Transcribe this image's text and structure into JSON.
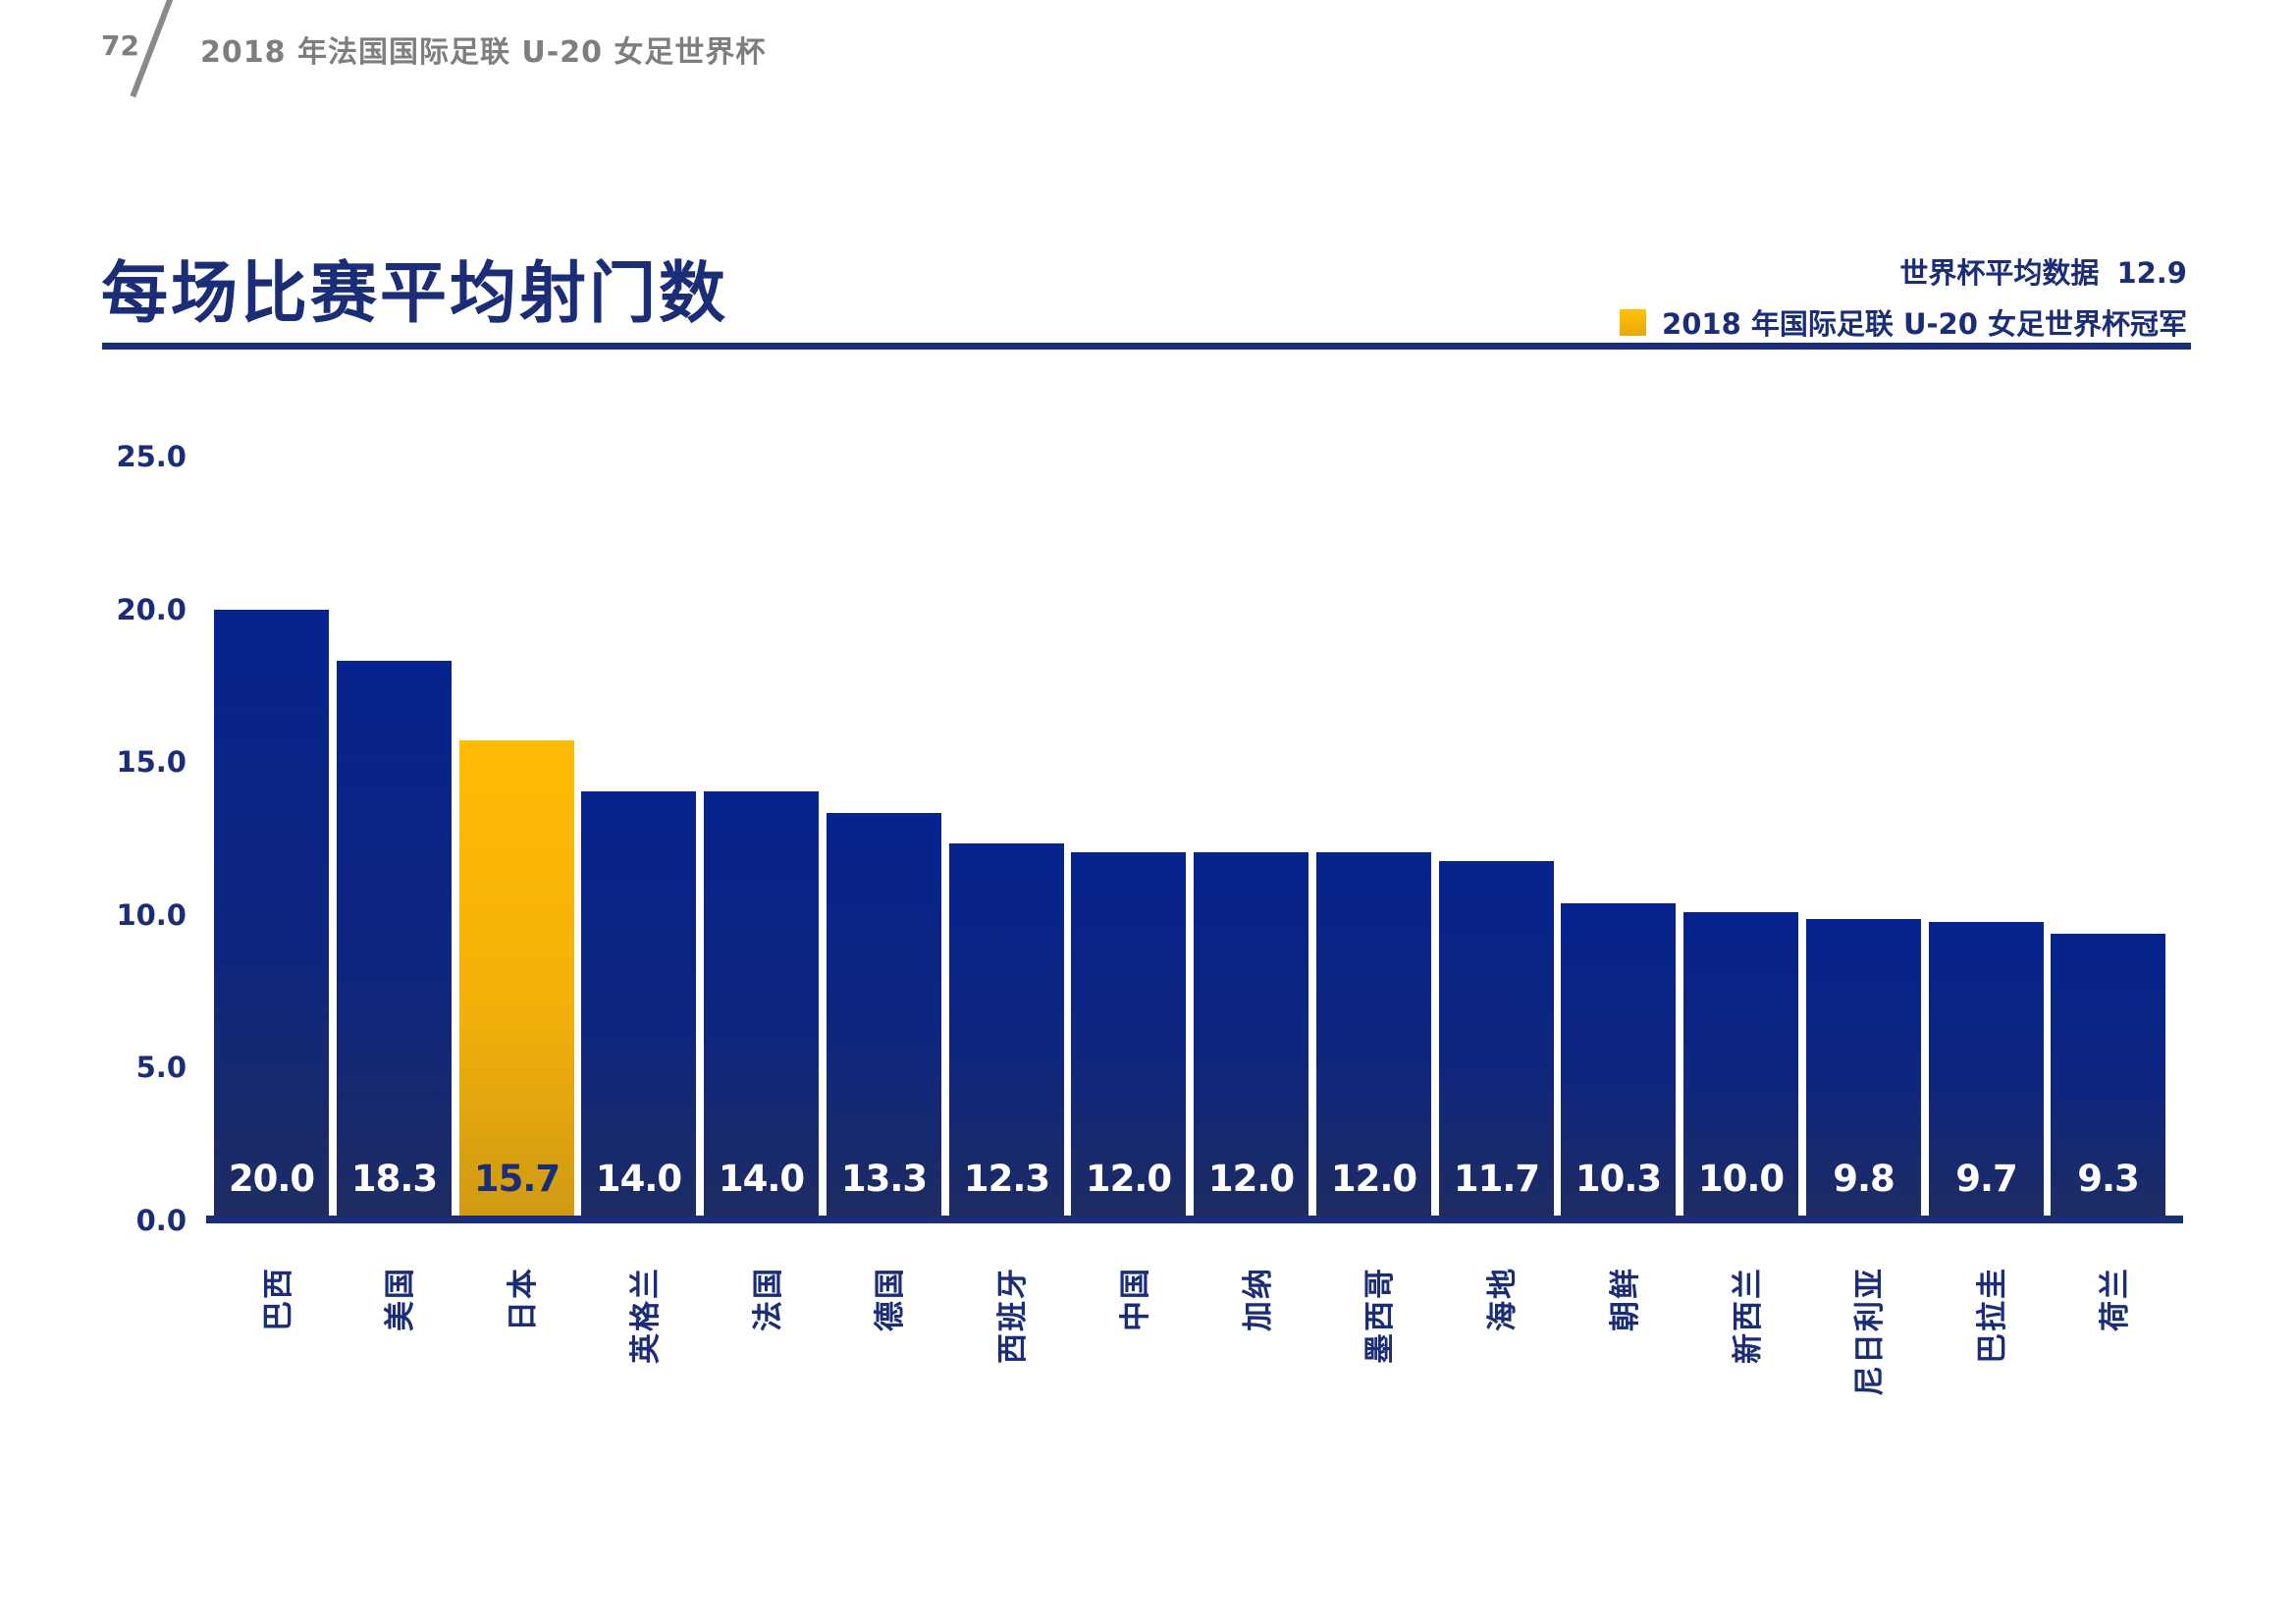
{
  "page": {
    "number": "72",
    "header_title": "2018 年法国国际足联 U-20 女足世界杯"
  },
  "chart_header": {
    "title": "每场比赛平均射门数",
    "average_label": "世界杯平均数据",
    "average_value": "12.9",
    "champion_legend_label": "2018 年国际足联 U-20 女足世界杯冠军"
  },
  "colors": {
    "navy_text": "#1b2d76",
    "bar_navy_top": "#06238e",
    "bar_navy_bottom": "#1e2c62",
    "bar_gold_top": "#ffbb05",
    "bar_gold_bottom": "#d09a14",
    "header_gray": "#7e7e7e",
    "value_label_white": "#ffffff"
  },
  "chart_data": {
    "type": "bar",
    "title": "每场比赛平均射门数",
    "categories": [
      "巴西",
      "美国",
      "日本",
      "英格兰",
      "法国",
      "德国",
      "西班牙",
      "中国",
      "加纳",
      "墨西哥",
      "海地",
      "朝鲜",
      "新西兰",
      "尼日利亚",
      "巴拉圭",
      "荷兰"
    ],
    "values": [
      20.0,
      18.3,
      15.7,
      14.0,
      14.0,
      13.3,
      12.3,
      12.0,
      12.0,
      12.0,
      11.7,
      10.3,
      10.0,
      9.8,
      9.7,
      9.3
    ],
    "value_labels": [
      "20.0",
      "18.3",
      "15.7",
      "14.0",
      "14.0",
      "13.3",
      "12.3",
      "12.0",
      "12.0",
      "12.0",
      "11.7",
      "10.3",
      "10.0",
      "9.8",
      "9.7",
      "9.3"
    ],
    "highlight_index": 2,
    "highlight_meaning": "2018 年国际足联 U-20 女足世界杯冠军",
    "world_cup_average": 12.9,
    "xlabel": "",
    "ylabel": "",
    "y_ticks": [
      "25.0",
      "20.0",
      "15.0",
      "10.0",
      "5.0",
      "0.0"
    ],
    "ylim": [
      0,
      25
    ],
    "grid": false,
    "legend_position": "top-right"
  }
}
